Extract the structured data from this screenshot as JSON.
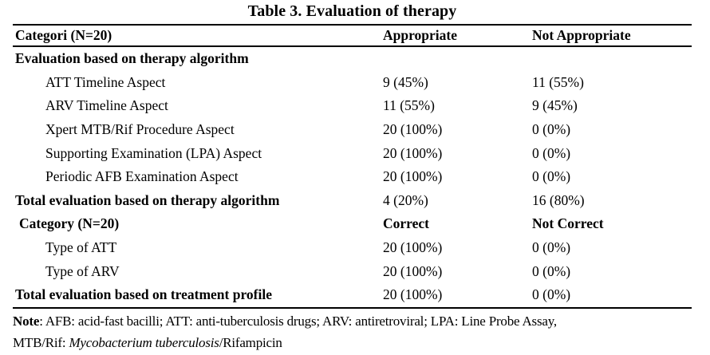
{
  "title": "Table 3. Evaluation of therapy",
  "header": {
    "col1": "Categori (N=20)",
    "col2": "Appropriate",
    "col3": "Not Appropriate"
  },
  "rows": [
    {
      "label": "Evaluation based on therapy algorithm",
      "appropriate": "",
      "not_appropriate": "",
      "type": "section"
    },
    {
      "label": "ATT Timeline Aspect",
      "appropriate": "9 (45%)",
      "not_appropriate": "11 (55%)",
      "type": "item"
    },
    {
      "label": "ARV Timeline Aspect",
      "appropriate": "11 (55%)",
      "not_appropriate": "9 (45%)",
      "type": "item"
    },
    {
      "label": "Xpert MTB/Rif Procedure Aspect",
      "appropriate": "20 (100%)",
      "not_appropriate": "0 (0%)",
      "type": "item"
    },
    {
      "label": "Supporting Examination (LPA) Aspect",
      "appropriate": "20 (100%)",
      "not_appropriate": "0 (0%)",
      "type": "item"
    },
    {
      "label": "Periodic AFB Examination Aspect",
      "appropriate": "20 (100%)",
      "not_appropriate": "0 (0%)",
      "type": "item"
    },
    {
      "label": "Total evaluation based on therapy algorithm",
      "appropriate": "4 (20%)",
      "not_appropriate": "16 (80%)",
      "type": "total"
    },
    {
      "label": "Category (N=20)",
      "appropriate": "Correct",
      "not_appropriate": "Not Correct",
      "type": "subheader"
    },
    {
      "label": "Type of ATT",
      "appropriate": "20 (100%)",
      "not_appropriate": "0 (0%)",
      "type": "item"
    },
    {
      "label": "Type of ARV",
      "appropriate": "20 (100%)",
      "not_appropriate": "0 (0%)",
      "type": "item"
    },
    {
      "label": "Total evaluation based on treatment profile",
      "appropriate": "20 (100%)",
      "not_appropriate": "0 (0%)",
      "type": "total"
    }
  ],
  "note": {
    "label": "Note",
    "line1": ": AFB: acid-fast bacilli; ATT: anti-tuberculosis drugs; ARV: antiretroviral; LPA: Line Probe Assay,",
    "line2_pre": "MTB/Rif: ",
    "line2_italic": "Mycobacterium tuberculosis",
    "line2_post": "/Rifampicin"
  },
  "colors": {
    "background": "#ffffff",
    "text": "#000000",
    "rule": "#000000"
  }
}
